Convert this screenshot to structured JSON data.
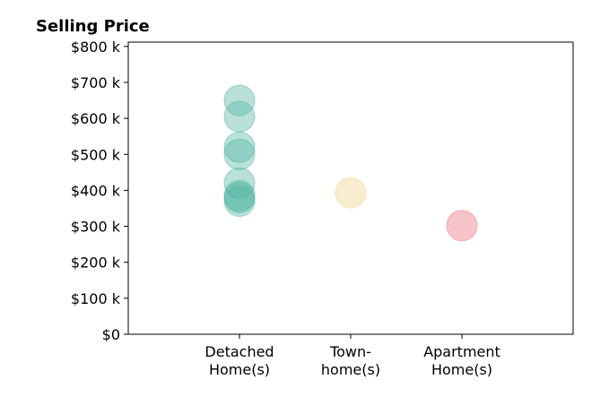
{
  "chart_data": {
    "type": "scatter",
    "title": "Selling Price",
    "xlabel": "",
    "ylabel": "",
    "categories": [
      [
        "Detached",
        "Home(s)"
      ],
      [
        "Town-",
        "home(s)"
      ],
      [
        "Apartment",
        "Home(s)"
      ]
    ],
    "xlim": [
      -1,
      3
    ],
    "ylim": [
      0,
      812
    ],
    "yticks": [
      0,
      100,
      200,
      300,
      400,
      500,
      600,
      700,
      800
    ],
    "ytick_labels": [
      "$0",
      "$100 k",
      "$200 k",
      "$300 k",
      "$400 k",
      "$500 k",
      "$600 k",
      "$700 k",
      "$800 k"
    ],
    "grid": false,
    "series": [
      {
        "category_index": 0,
        "color": "#4fb3a3",
        "alpha": 0.4,
        "values": [
          650,
          605,
          520,
          500,
          420,
          385,
          380,
          370
        ]
      },
      {
        "category_index": 1,
        "color": "#f2dfa8",
        "alpha": 0.55,
        "values": [
          393
        ]
      },
      {
        "category_index": 2,
        "color": "#f08a94",
        "alpha": 0.5,
        "values": [
          302
        ]
      }
    ]
  }
}
